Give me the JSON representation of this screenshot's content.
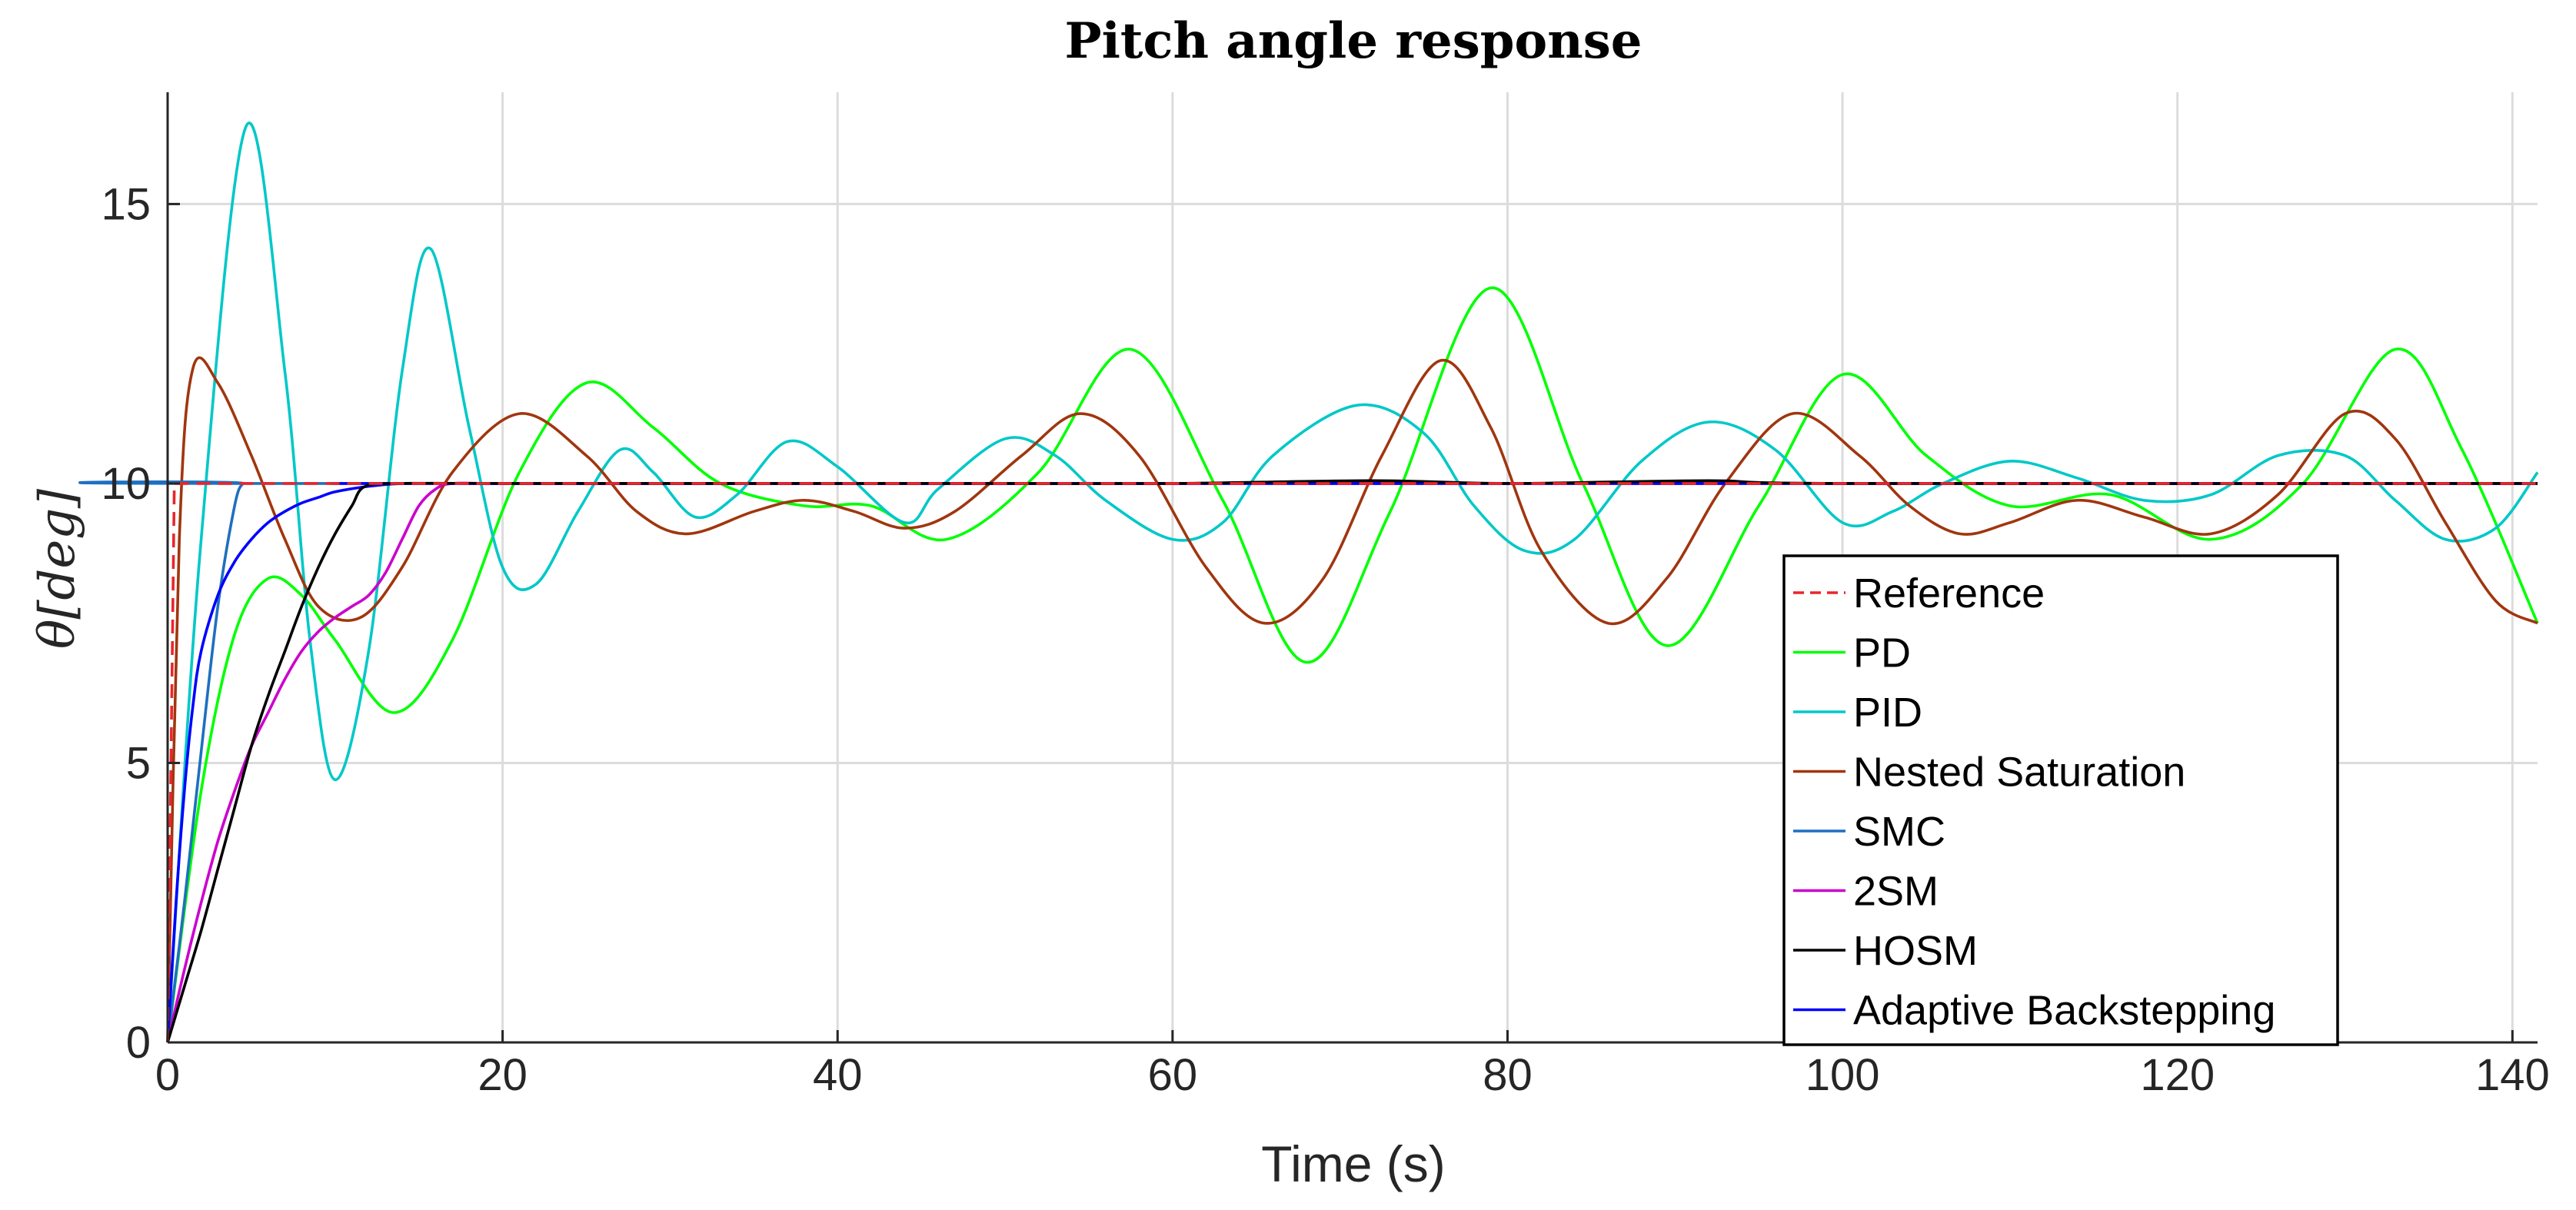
{
  "chart_data": {
    "type": "line",
    "title": "Pitch angle response",
    "xlabel": "Time (s)",
    "ylabel": "θ[deg]",
    "xlim": [
      0,
      141.5
    ],
    "ylim": [
      0,
      17
    ],
    "xticks": [
      0,
      20,
      40,
      60,
      80,
      100,
      120,
      140
    ],
    "yticks": [
      0,
      5,
      10,
      15
    ],
    "grid": true,
    "legend_position": "lower-right",
    "series": [
      {
        "name": "Reference",
        "color": "#e8262c",
        "dash": "dashed",
        "x": [
          0,
          0.4,
          0.8,
          141.5
        ],
        "y": [
          0,
          10,
          10,
          10
        ]
      },
      {
        "name": "PD",
        "color": "#00ff00",
        "x": [
          0,
          2,
          4,
          6,
          8,
          10,
          13.5,
          17,
          21,
          25,
          29,
          33,
          38,
          42,
          46.5,
          52,
          57.5,
          63,
          68,
          73,
          79,
          84.5,
          89.5,
          95,
          100,
          105,
          110,
          116,
          122,
          127.5,
          133,
          137,
          141.5
        ],
        "y": [
          0,
          4.5,
          7.3,
          8.3,
          8.0,
          7.2,
          5.9,
          7.2,
          10.2,
          11.8,
          11.0,
          10.0,
          9.6,
          9.6,
          9.0,
          10.2,
          12.4,
          9.7,
          6.8,
          9.5,
          13.5,
          10.0,
          7.1,
          9.6,
          11.95,
          10.5,
          9.6,
          9.8,
          9.0,
          10.0,
          12.4,
          10.6,
          7.5
        ]
      },
      {
        "name": "PID",
        "color": "#00c8c8",
        "x": [
          0,
          2,
          4.7,
          7,
          8.5,
          10,
          12,
          14,
          15.7,
          18,
          20,
          22,
          24.5,
          27,
          29,
          31.5,
          34,
          37,
          40,
          44,
          46,
          50,
          53,
          56,
          60,
          63,
          66,
          71,
          75,
          78,
          81,
          84,
          88,
          92,
          96,
          100,
          103,
          106,
          110,
          114,
          118,
          122,
          126,
          130,
          133,
          136,
          139,
          141.5
        ],
        "y": [
          0,
          9.0,
          16.4,
          12.0,
          7.2,
          4.7,
          7.0,
          12.0,
          14.2,
          11.0,
          8.5,
          8.2,
          9.5,
          10.6,
          10.2,
          9.4,
          9.8,
          10.75,
          10.3,
          9.3,
          9.9,
          10.8,
          10.5,
          9.7,
          9.0,
          9.3,
          10.5,
          11.4,
          10.9,
          9.6,
          8.8,
          9.0,
          10.4,
          11.1,
          10.6,
          9.3,
          9.5,
          10.0,
          10.4,
          10.1,
          9.7,
          9.8,
          10.5,
          10.5,
          9.7,
          9.0,
          9.2,
          10.2
        ]
      },
      {
        "name": "Nested Saturation",
        "color": "#a0360f",
        "x": [
          0,
          0.7,
          1.5,
          3,
          5,
          7,
          9,
          11.5,
          14,
          17,
          21,
          25,
          28,
          31,
          35,
          38,
          41,
          44,
          47,
          51,
          54.5,
          58,
          62,
          65.5,
          69,
          72.5,
          76,
          79,
          82,
          86,
          89.5,
          93,
          97,
          101,
          104,
          107,
          110,
          114,
          118,
          122,
          126,
          130,
          133,
          136,
          139,
          141.5
        ],
        "y": [
          0,
          9.0,
          12.05,
          11.8,
          10.5,
          9.0,
          7.8,
          7.6,
          8.5,
          10.2,
          11.25,
          10.5,
          9.5,
          9.1,
          9.5,
          9.7,
          9.5,
          9.2,
          9.5,
          10.5,
          11.25,
          10.5,
          8.5,
          7.5,
          8.3,
          10.5,
          12.2,
          11.0,
          8.8,
          7.5,
          8.3,
          10.0,
          11.25,
          10.5,
          9.6,
          9.1,
          9.3,
          9.7,
          9.4,
          9.1,
          9.8,
          11.25,
          10.8,
          9.3,
          7.9,
          7.5
        ]
      },
      {
        "name": "SMC",
        "color": "#1f6fc0",
        "x": [
          0,
          1,
          2,
          3,
          4,
          4.5,
          5,
          141.5
        ],
        "y": [
          0,
          2.5,
          5.2,
          7.8,
          9.6,
          10.0,
          10.0,
          10.0
        ]
      },
      {
        "name": "2SM",
        "color": "#cc00cc",
        "x": [
          0,
          1,
          2,
          3,
          4,
          5,
          6,
          7,
          8,
          9,
          10,
          11,
          12,
          13,
          14,
          15,
          16,
          17,
          20,
          30,
          60,
          100,
          141.5
        ],
        "y": [
          0,
          1.3,
          2.5,
          3.6,
          4.5,
          5.3,
          5.9,
          6.5,
          7.0,
          7.35,
          7.6,
          7.8,
          8.0,
          8.4,
          9.0,
          9.6,
          9.9,
          10.0,
          10.0,
          10.0,
          10.0,
          10.0,
          10.0
        ]
      },
      {
        "name": "HOSM",
        "color": "#000000",
        "x": [
          0,
          1,
          2,
          3,
          4,
          5,
          6,
          7,
          8,
          9,
          10,
          11,
          11.8,
          14,
          20,
          30,
          40,
          50,
          60,
          72,
          80,
          92,
          100,
          141.5
        ],
        "y": [
          0,
          1.0,
          2.0,
          3.1,
          4.2,
          5.3,
          6.2,
          7.0,
          7.8,
          8.5,
          9.1,
          9.6,
          9.95,
          10.0,
          10.0,
          10.0,
          10.0,
          10.0,
          10.0,
          10.05,
          10.0,
          10.05,
          10.0,
          10.0
        ]
      },
      {
        "name": "Adaptive Backstepping",
        "color": "#0000ff",
        "x": [
          0,
          0.5,
          1,
          1.5,
          2,
          3,
          4,
          5,
          6,
          7,
          8,
          9,
          10,
          12,
          14,
          16,
          20,
          141.5
        ],
        "y": [
          0,
          2.5,
          4.5,
          6.0,
          7.0,
          8.0,
          8.6,
          9.0,
          9.3,
          9.5,
          9.65,
          9.75,
          9.85,
          9.95,
          10.0,
          10.0,
          10.0,
          10.0
        ]
      }
    ]
  }
}
